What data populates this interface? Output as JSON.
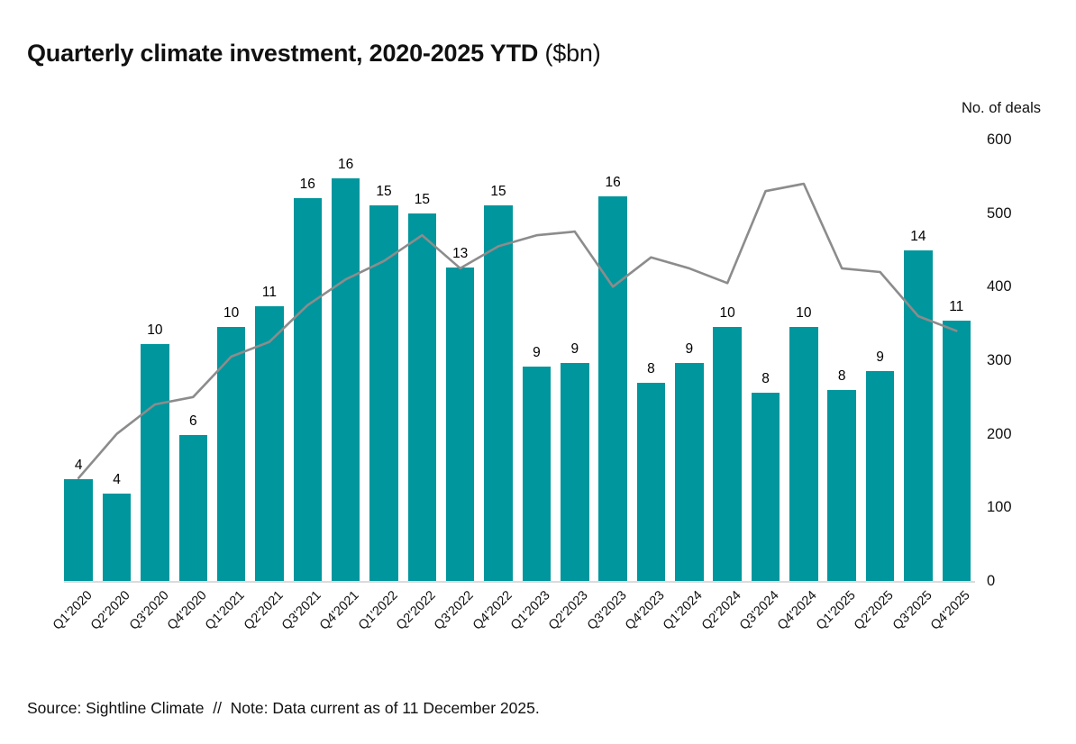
{
  "title": {
    "main": "Quarterly climate investment, 2020-2025 YTD",
    "suffix": " ($bn)"
  },
  "right_axis": {
    "title": "No. of deals",
    "ticks": [
      600,
      500,
      400,
      300,
      200,
      100,
      0
    ]
  },
  "footer": {
    "text": "Source: Sightline Climate  //  Note: Data current as of 11 December 2025."
  },
  "chart_data": {
    "type": "bar",
    "subtype": "bar-line-combo",
    "title": "Quarterly climate investment, 2020-2025 YTD ($bn)",
    "xlabel": "",
    "ylabel_right": "No. of deals",
    "right_ylim": [
      0,
      600
    ],
    "grid": "off",
    "legend": "none",
    "categories": [
      "Q1'2020",
      "Q2'2020",
      "Q3'2020",
      "Q4'2020",
      "Q1'2021",
      "Q2'2021",
      "Q3'2021",
      "Q4'2021",
      "Q1'2022",
      "Q2'2022",
      "Q3'2022",
      "Q4'2022",
      "Q1'2023",
      "Q2'2023",
      "Q3'2023",
      "Q4'2023",
      "Q1'2024",
      "Q2'2024",
      "Q3'2024",
      "Q4'2024",
      "Q1'2025",
      "Q2'2025",
      "Q3'2025",
      "Q4'2025"
    ],
    "series": [
      {
        "name": "Quarterly climate investment ($bn)",
        "type": "bar",
        "axis": "left",
        "value_labels": [
          4,
          4,
          10,
          6,
          10,
          11,
          16,
          16,
          15,
          15,
          13,
          15,
          9,
          9,
          16,
          8,
          9,
          10,
          8,
          10,
          8,
          9,
          14,
          11
        ],
        "values": [
          4.15,
          3.57,
          9.67,
          5.96,
          10.37,
          11.21,
          15.63,
          16.43,
          15.33,
          15.0,
          12.8,
          15.33,
          8.75,
          8.9,
          15.7,
          8.1,
          8.9,
          10.37,
          7.7,
          10.37,
          7.8,
          8.55,
          13.5,
          10.62
        ]
      },
      {
        "name": "No. of deals",
        "type": "line",
        "axis": "right",
        "values": [
          140,
          200,
          240,
          250,
          305,
          325,
          375,
          410,
          435,
          470,
          425,
          455,
          470,
          475,
          400,
          440,
          425,
          405,
          530,
          540,
          425,
          420,
          360,
          340
        ]
      }
    ],
    "colors": {
      "bar": "#00969D",
      "line": "#8C8C8C",
      "baseline": "#DBDBDB",
      "text": "#111111"
    }
  }
}
